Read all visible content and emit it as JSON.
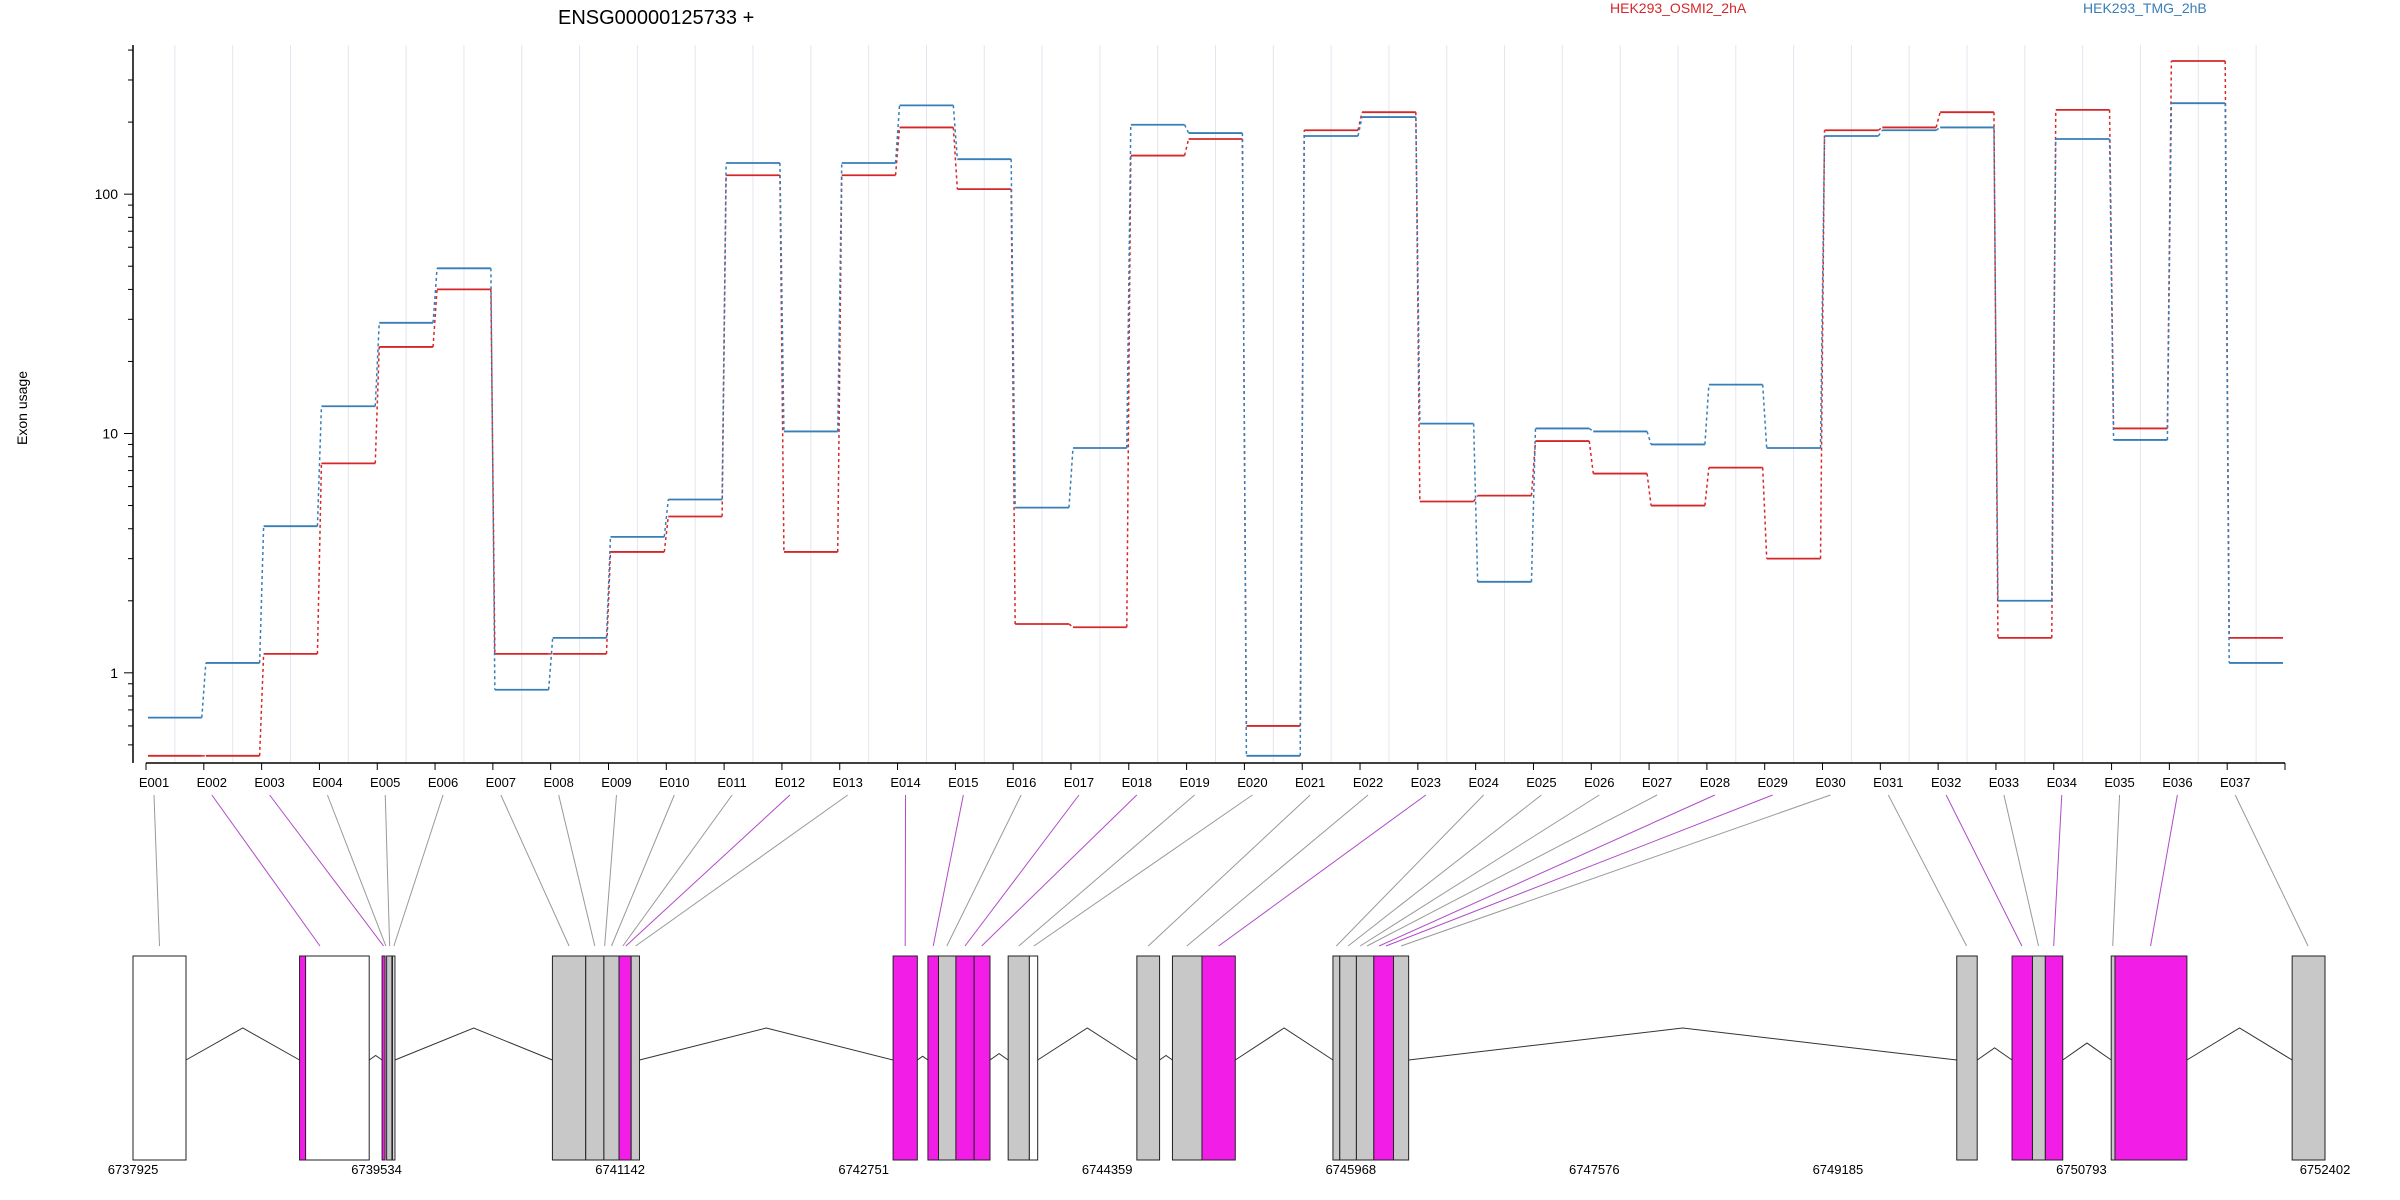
{
  "chart_data": {
    "type": "line",
    "title": "ENSG00000125733 +",
    "ylabel": "Exon usage",
    "yscale": "log",
    "ylim": [
      0.42,
      420
    ],
    "yticks": [
      1,
      10,
      100
    ],
    "ytick_labels": [
      "1",
      "10",
      "100"
    ],
    "colors": {
      "HEK293_OSMI2_2hA": "#d62728",
      "HEK293_TMG_2hB": "#377eb8",
      "diff_exon": "#f21ee8",
      "exon": "#c8c8c8"
    },
    "categories": [
      "E001",
      "E002",
      "E003",
      "E004",
      "E005",
      "E006",
      "E007",
      "E008",
      "E009",
      "E010",
      "E011",
      "E012",
      "E013",
      "E014",
      "E015",
      "E016",
      "E017",
      "E018",
      "E019",
      "E020",
      "E021",
      "E022",
      "E023",
      "E024",
      "E025",
      "E026",
      "E027",
      "E028",
      "E029",
      "E030",
      "E031",
      "E032",
      "E033",
      "E034",
      "E035",
      "E036",
      "E037"
    ],
    "series": [
      {
        "name": "HEK293_OSMI2_2hA",
        "color": "#d62728",
        "values": [
          0.45,
          0.45,
          1.2,
          7.5,
          23,
          40,
          1.2,
          1.2,
          3.2,
          4.5,
          120,
          3.2,
          120,
          190,
          105,
          1.6,
          1.55,
          145,
          170,
          0.6,
          185,
          220,
          5.2,
          5.5,
          9.3,
          6.8,
          5.0,
          7.2,
          3.0,
          185,
          190,
          220,
          1.4,
          225,
          10.5,
          360,
          1.4
        ]
      },
      {
        "name": "HEK293_TMG_2hB",
        "color": "#377eb8",
        "values": [
          0.65,
          1.1,
          4.1,
          13,
          29,
          49,
          0.85,
          1.4,
          3.7,
          5.3,
          135,
          10.2,
          135,
          235,
          140,
          4.9,
          8.7,
          195,
          180,
          0.45,
          175,
          210,
          11,
          2.4,
          10.5,
          10.2,
          9,
          16,
          8.7,
          175,
          185,
          190,
          2.0,
          170,
          9.4,
          240,
          1.1
        ]
      }
    ],
    "gene_model": {
      "coordinate_labels": [
        "6737925",
        "6739534",
        "6741142",
        "6742751",
        "6744359",
        "6745968",
        "6747576",
        "6749185",
        "6750793",
        "6752402"
      ],
      "start": 6737925,
      "end": 6752402,
      "exons": [
        {
          "start": 6737925,
          "end": 6738275,
          "fill": "none"
        },
        {
          "start": 6739025,
          "end": 6739285,
          "fill": "pink"
        },
        {
          "start": 6739065,
          "end": 6739485,
          "fill": "none"
        },
        {
          "start": 6739570,
          "end": 6739590,
          "fill": "pink"
        },
        {
          "start": 6739600,
          "end": 6739635,
          "fill": "grey"
        },
        {
          "start": 6739640,
          "end": 6739655,
          "fill": "none"
        },
        {
          "start": 6740695,
          "end": 6740915,
          "fill": "grey"
        },
        {
          "start": 6740915,
          "end": 6741035,
          "fill": "grey"
        },
        {
          "start": 6741035,
          "end": 6741135,
          "fill": "grey"
        },
        {
          "start": 6741135,
          "end": 6741215,
          "fill": "pink"
        },
        {
          "start": 6741215,
          "end": 6741270,
          "fill": "grey"
        },
        {
          "start": 6742945,
          "end": 6743105,
          "fill": "pink"
        },
        {
          "start": 6743175,
          "end": 6743245,
          "fill": "pink"
        },
        {
          "start": 6743245,
          "end": 6743360,
          "fill": "grey"
        },
        {
          "start": 6743360,
          "end": 6743480,
          "fill": "pink"
        },
        {
          "start": 6743480,
          "end": 6743585,
          "fill": "pink"
        },
        {
          "start": 6743705,
          "end": 6743845,
          "fill": "grey"
        },
        {
          "start": 6743845,
          "end": 6743900,
          "fill": "none"
        },
        {
          "start": 6744555,
          "end": 6744705,
          "fill": "grey"
        },
        {
          "start": 6744790,
          "end": 6744985,
          "fill": "grey"
        },
        {
          "start": 6744985,
          "end": 6745205,
          "fill": "pink"
        },
        {
          "start": 6745850,
          "end": 6745895,
          "fill": "grey"
        },
        {
          "start": 6745895,
          "end": 6746005,
          "fill": "grey"
        },
        {
          "start": 6746005,
          "end": 6746120,
          "fill": "grey"
        },
        {
          "start": 6746120,
          "end": 6746250,
          "fill": "pink"
        },
        {
          "start": 6746250,
          "end": 6746350,
          "fill": "grey"
        },
        {
          "start": 6749970,
          "end": 6750105,
          "fill": "grey"
        },
        {
          "start": 6750335,
          "end": 6750470,
          "fill": "pink"
        },
        {
          "start": 6750470,
          "end": 6750555,
          "fill": "grey"
        },
        {
          "start": 6750555,
          "end": 6750670,
          "fill": "pink"
        },
        {
          "start": 6750990,
          "end": 6751015,
          "fill": "grey"
        },
        {
          "start": 6751015,
          "end": 6751490,
          "fill": "pink"
        },
        {
          "start": 6752185,
          "end": 6752402,
          "fill": "grey"
        }
      ],
      "connectors": [
        {
          "exon": "E001",
          "pos": 6738100,
          "diff": false
        },
        {
          "exon": "E002",
          "pos": 6739160,
          "diff": true
        },
        {
          "exon": "E003",
          "pos": 6739580,
          "diff": true
        },
        {
          "exon": "E004",
          "pos": 6739595,
          "diff": false
        },
        {
          "exon": "E005",
          "pos": 6739620,
          "diff": false
        },
        {
          "exon": "E006",
          "pos": 6739648,
          "diff": false
        },
        {
          "exon": "E007",
          "pos": 6740805,
          "diff": false
        },
        {
          "exon": "E008",
          "pos": 6740975,
          "diff": false
        },
        {
          "exon": "E009",
          "pos": 6741040,
          "diff": false
        },
        {
          "exon": "E010",
          "pos": 6741085,
          "diff": false
        },
        {
          "exon": "E011",
          "pos": 6741160,
          "diff": false
        },
        {
          "exon": "E012",
          "pos": 6741180,
          "diff": true
        },
        {
          "exon": "E013",
          "pos": 6741245,
          "diff": false
        },
        {
          "exon": "E014",
          "pos": 6743025,
          "diff": true
        },
        {
          "exon": "E015",
          "pos": 6743210,
          "diff": true
        },
        {
          "exon": "E016",
          "pos": 6743300,
          "diff": false
        },
        {
          "exon": "E017",
          "pos": 6743420,
          "diff": true
        },
        {
          "exon": "E018",
          "pos": 6743530,
          "diff": true
        },
        {
          "exon": "E019",
          "pos": 6743775,
          "diff": false
        },
        {
          "exon": "E020",
          "pos": 6743875,
          "diff": false
        },
        {
          "exon": "E021",
          "pos": 6744630,
          "diff": false
        },
        {
          "exon": "E022",
          "pos": 6744885,
          "diff": false
        },
        {
          "exon": "E023",
          "pos": 6745095,
          "diff": true
        },
        {
          "exon": "E024",
          "pos": 6745872,
          "diff": false
        },
        {
          "exon": "E025",
          "pos": 6745950,
          "diff": false
        },
        {
          "exon": "E026",
          "pos": 6746030,
          "diff": false
        },
        {
          "exon": "E027",
          "pos": 6746075,
          "diff": false
        },
        {
          "exon": "E028",
          "pos": 6746155,
          "diff": true
        },
        {
          "exon": "E029",
          "pos": 6746200,
          "diff": true
        },
        {
          "exon": "E030",
          "pos": 6746300,
          "diff": false
        },
        {
          "exon": "E031",
          "pos": 6750035,
          "diff": false
        },
        {
          "exon": "E032",
          "pos": 6750400,
          "diff": true
        },
        {
          "exon": "E033",
          "pos": 6750510,
          "diff": false
        },
        {
          "exon": "E034",
          "pos": 6750610,
          "diff": true
        },
        {
          "exon": "E035",
          "pos": 6751000,
          "diff": false
        },
        {
          "exon": "E036",
          "pos": 6751250,
          "diff": true
        },
        {
          "exon": "E037",
          "pos": 6752290,
          "diff": false
        }
      ]
    }
  }
}
